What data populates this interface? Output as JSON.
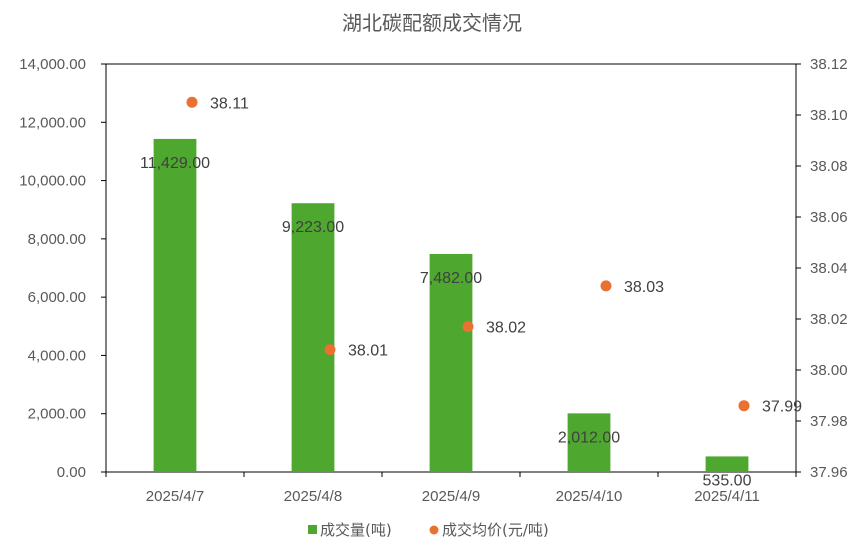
{
  "chart_data": {
    "type": "bar",
    "title": "湖北碳配额成交情况",
    "categories": [
      "2025/4/7",
      "2025/4/8",
      "2025/4/9",
      "2025/4/10",
      "2025/4/11"
    ],
    "series": [
      {
        "name": "成交量(吨)",
        "type": "bar",
        "axis": "left",
        "color": "#4EA72E",
        "values": [
          11429,
          9223,
          7482,
          2012,
          535
        ],
        "labels": [
          "11,429.00",
          "9,223.00",
          "7,482.00",
          "2,012.00",
          "535.00"
        ]
      },
      {
        "name": "成交均价(元/吨)",
        "type": "scatter",
        "axis": "right",
        "color": "#E97132",
        "values": [
          38.105,
          38.008,
          38.017,
          38.033,
          37.986
        ],
        "labels": [
          "38.11",
          "38.01",
          "38.02",
          "38.03",
          "37.99"
        ]
      }
    ],
    "y_left": {
      "range": [
        0,
        14000
      ],
      "ticks": [
        "0.00",
        "2,000.00",
        "4,000.00",
        "6,000.00",
        "8,000.00",
        "10,000.00",
        "12,000.00",
        "14,000.00"
      ]
    },
    "y_right": {
      "range": [
        37.96,
        38.12
      ],
      "ticks": [
        "37.96",
        "37.98",
        "38.00",
        "38.02",
        "38.04",
        "38.06",
        "38.08",
        "38.10",
        "38.12"
      ]
    },
    "grid": false,
    "legend_position": "bottom"
  }
}
